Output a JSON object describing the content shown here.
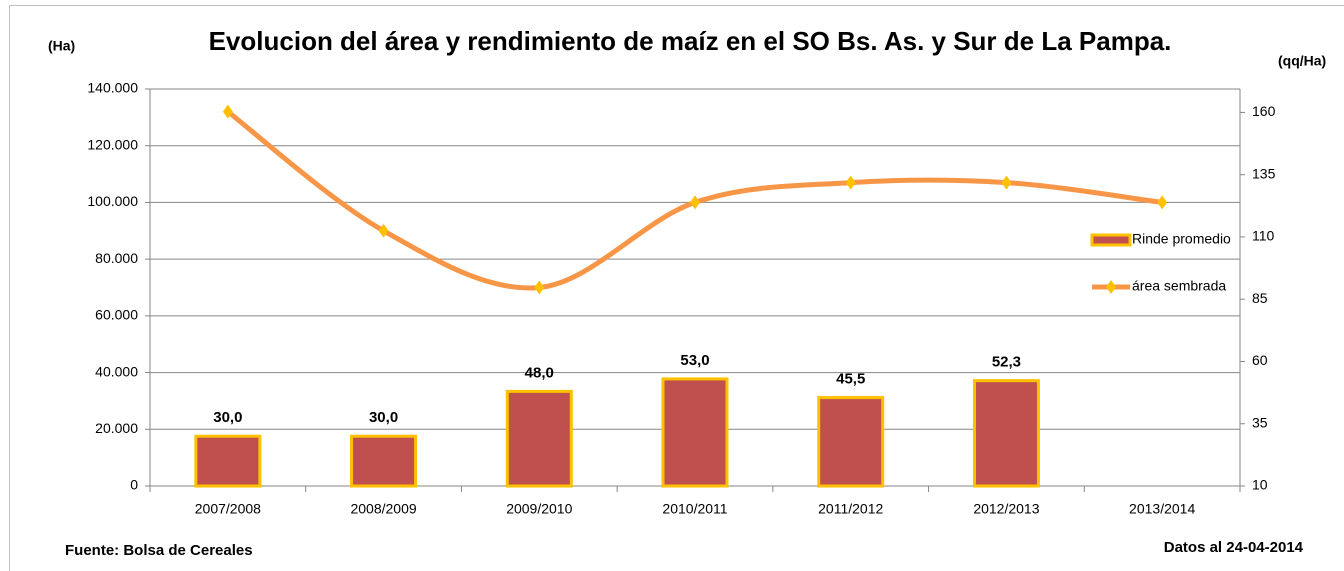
{
  "chart_data": {
    "type": "bar-line",
    "title": "Evolucion del área y rendimiento de maíz en el SO Bs. As. y Sur de La Pampa.",
    "y_label": "(Ha)",
    "y2_label": "(qq/Ha)",
    "source": "Fuente: Bolsa de Cereales",
    "date_note": "Datos al 24-04-2014",
    "categories": [
      "2007/2008",
      "2008/2009",
      "2009/2010",
      "2010/2011",
      "2011/2012",
      "2012/2013",
      "2013/2014"
    ],
    "series": [
      {
        "name": "Rinde promedio",
        "type": "bar",
        "axis": "y2",
        "color": "#c0504d",
        "edge_color": "#ffc000",
        "values": [
          30,
          30,
          48,
          53,
          45.5,
          52.3,
          null
        ],
        "value_labels": [
          "30,0",
          "30,0",
          "48,0",
          "53,0",
          "45,5",
          "52,3",
          null
        ]
      },
      {
        "name": "área sembrada",
        "type": "line",
        "axis": "y",
        "color": "#f79646",
        "marker_color": "#ffc000",
        "values": [
          132000,
          90000,
          70000,
          100000,
          107000,
          107000,
          100000
        ]
      }
    ],
    "ylim": [
      0,
      140000
    ],
    "yticks": [
      0,
      {
        "value": 20000,
        "label": "20.000"
      },
      {
        "value": 40000,
        "label": "40.000"
      },
      {
        "value": 60000,
        "label": "60.000"
      },
      {
        "value": 80000,
        "label": "80.000"
      },
      {
        "value": 100000,
        "label": "100.000"
      },
      {
        "value": 120000,
        "label": "120.000"
      },
      {
        "value": 140000,
        "label": "140.000"
      }
    ],
    "y2lim": [
      10,
      169.4
    ],
    "y2ticks": [
      10,
      35,
      60,
      85,
      110,
      135,
      160
    ],
    "grid": true,
    "legend": "right"
  }
}
